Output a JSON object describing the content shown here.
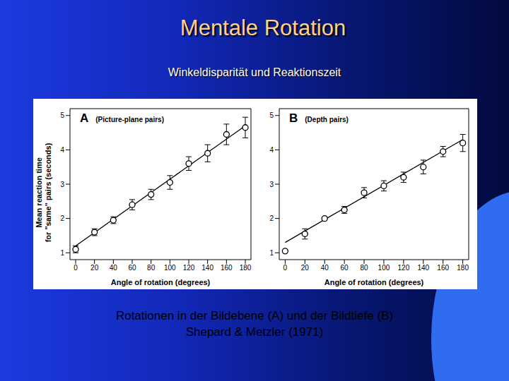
{
  "slide": {
    "title": "Mentale Rotation",
    "subtitle": "Winkeldisparität und Reaktionszeit",
    "caption": [
      "Rotationen in der Bildebene (A) und der Bildtiefe (B)",
      "Shepard & Metzler (1971)"
    ]
  },
  "chart_data": [
    {
      "type": "scatter",
      "panel": "A",
      "title": "(Picture-plane pairs)",
      "xlabel": "Angle of rotation (degrees)",
      "ylabel": "Mean reaction time\nfor \"same\" pairs (seconds)",
      "x": [
        0,
        20,
        40,
        60,
        80,
        100,
        120,
        140,
        160,
        180
      ],
      "values": [
        1.1,
        1.6,
        1.95,
        2.4,
        2.7,
        3.05,
        3.6,
        3.9,
        4.45,
        4.65
      ],
      "error": [
        0.1,
        0.1,
        0.1,
        0.15,
        0.15,
        0.2,
        0.2,
        0.25,
        0.3,
        0.3
      ],
      "fit_line": {
        "x": [
          0,
          180
        ],
        "values": [
          1.2,
          4.7
        ]
      },
      "color": "#000000",
      "marker": "open_circle",
      "xlim": [
        -6,
        186
      ],
      "ylim": [
        0.8,
        5.2
      ],
      "xticks": [
        0,
        20,
        40,
        60,
        80,
        100,
        120,
        140,
        160,
        180
      ],
      "yticks": [
        1,
        2,
        3,
        4,
        5
      ]
    },
    {
      "type": "scatter",
      "panel": "B",
      "title": "(Depth pairs)",
      "xlabel": "Angle of rotation (degrees)",
      "x": [
        0,
        20,
        40,
        60,
        80,
        100,
        120,
        140,
        160,
        180
      ],
      "values": [
        1.05,
        1.55,
        2.0,
        2.25,
        2.75,
        2.95,
        3.2,
        3.5,
        3.95,
        4.2
      ],
      "error": [
        0,
        0.15,
        0,
        0.1,
        0.15,
        0.15,
        0.15,
        0.2,
        0.15,
        0.25
      ],
      "fit_line": {
        "x": [
          0,
          180
        ],
        "values": [
          1.3,
          4.3
        ]
      },
      "color": "#000000",
      "marker": "open_circle",
      "xlim": [
        -6,
        186
      ],
      "ylim": [
        0.8,
        5.2
      ],
      "xticks": [
        0,
        20,
        40,
        60,
        80,
        100,
        120,
        140,
        160,
        180
      ],
      "yticks": [
        1,
        2,
        3,
        4,
        5
      ]
    }
  ]
}
